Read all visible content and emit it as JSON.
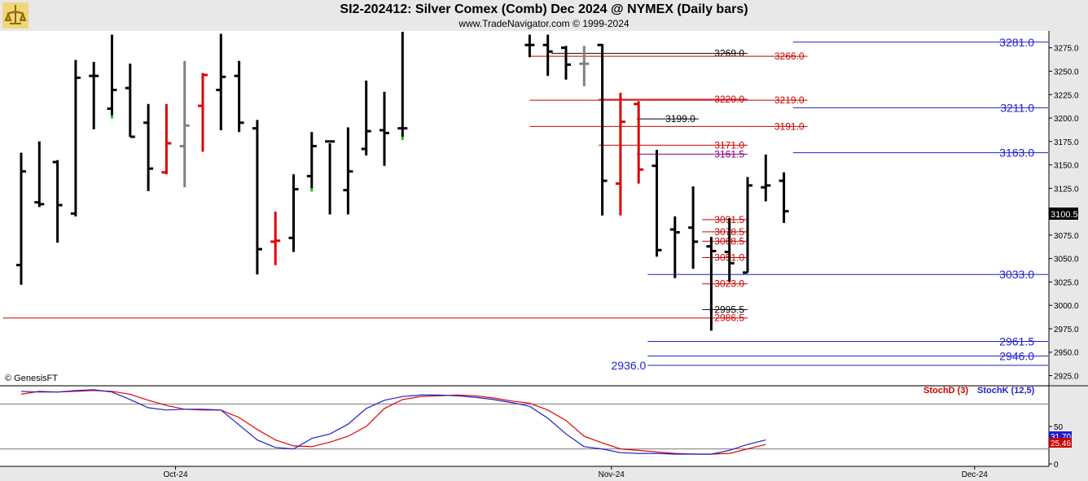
{
  "header": {
    "title": "SI2-202412:  Silver Comex (Comb) Dec 2024 @ NYMEX  (Daily bars)",
    "subtitle": "www.TradeNavigator.com © 1999-2024"
  },
  "watermark": "© GenesisFT",
  "colors": {
    "up_bar": "#000000",
    "down_bar": "#e00000",
    "neutral_bar": "#808080",
    "green_tick": "#00cc00",
    "blue_level": "#1f1fcc",
    "red_level": "#cc0000",
    "black_level": "#000000",
    "purple_level": "#800080"
  },
  "chart_data": [
    {
      "type": "ohlc",
      "title": "SI2-202412:  Silver Comex (Comb) Dec 2024 @ NYMEX  (Daily bars)",
      "ylim": [
        2915,
        3293
      ],
      "y_ticks": [
        "3275.0",
        "3250.0",
        "3225.0",
        "3200.0",
        "3175.0",
        "3150.0",
        "3125.0",
        "3100.0",
        "3075.0",
        "3050.0",
        "3025.0",
        "3000.0",
        "2975.0",
        "2950.0",
        "2925.0"
      ],
      "y_tick_values": [
        3275,
        3250,
        3225,
        3200,
        3175,
        3150,
        3125,
        3100,
        3075,
        3050,
        3025,
        3000,
        2975,
        2950,
        2925
      ],
      "x_labels": [
        {
          "label": "Oct-24",
          "index": 8.5
        },
        {
          "label": "Nov-24",
          "index": 32.5
        },
        {
          "label": "Dec-24",
          "index": 52.5
        }
      ],
      "last_price": "3100.5",
      "last_value": 3100.5,
      "bars": [
        {
          "o": 3043,
          "h": 3163,
          "l": 3022,
          "c": 3143,
          "color": "black"
        },
        {
          "o": 3110,
          "h": 3175,
          "l": 3105,
          "c": 3108,
          "color": "black"
        },
        {
          "o": 3153,
          "h": 3155,
          "l": 3067,
          "c": 3107,
          "color": "black"
        },
        {
          "o": 3098,
          "h": 3262,
          "l": 3095,
          "c": 3243,
          "color": "black"
        },
        {
          "o": 3245,
          "h": 3260,
          "l": 3188,
          "c": 3245,
          "color": "black"
        },
        {
          "o": 3210,
          "h": 3289,
          "l": 3203,
          "c": 3230,
          "color": "black",
          "tick": "green"
        },
        {
          "o": 3232,
          "h": 3258,
          "l": 3180,
          "c": 3180,
          "color": "black"
        },
        {
          "o": 3195,
          "h": 3215,
          "l": 3122,
          "c": 3146,
          "color": "black"
        },
        {
          "o": 3142,
          "h": 3215,
          "l": 3140,
          "c": 3173,
          "color": "red"
        },
        {
          "o": 3170,
          "h": 3261,
          "l": 3126,
          "c": 3192,
          "color": "gray"
        },
        {
          "o": 3213,
          "h": 3248,
          "l": 3164,
          "c": 3246,
          "color": "red"
        },
        {
          "o": 3230,
          "h": 3290,
          "l": 3187,
          "c": 3244,
          "color": "black"
        },
        {
          "o": 3245,
          "h": 3261,
          "l": 3185,
          "c": 3195,
          "color": "black"
        },
        {
          "o": 3189,
          "h": 3198,
          "l": 3033,
          "c": 3060,
          "color": "black"
        },
        {
          "o": 3068,
          "h": 3100,
          "l": 3043,
          "c": 3069,
          "color": "red"
        },
        {
          "o": 3072,
          "h": 3140,
          "l": 3057,
          "c": 3124,
          "color": "black"
        },
        {
          "o": 3138,
          "h": 3185,
          "l": 3125,
          "c": 3170,
          "color": "black",
          "tick": "green"
        },
        {
          "o": 3175,
          "h": 3173,
          "l": 3097,
          "c": 3175,
          "color": "black"
        },
        {
          "o": 3123,
          "h": 3190,
          "l": 3097,
          "c": 3143,
          "color": "black"
        },
        {
          "o": 3167,
          "h": 3240,
          "l": 3160,
          "c": 3186,
          "color": "black"
        },
        {
          "o": 3187,
          "h": 3228,
          "l": 3149,
          "c": 3184,
          "color": "black"
        },
        {
          "o": 3189,
          "h": 3292,
          "l": 3180,
          "c": 3189,
          "color": "black",
          "tick": "green"
        },
        null,
        null,
        null,
        null,
        null,
        null,
        {
          "o": 3278,
          "h": 3289,
          "l": 3265,
          "c": 3278,
          "color": "black"
        },
        {
          "o": 3278,
          "h": 3289,
          "l": 3245,
          "c": 3271,
          "color": "black"
        },
        {
          "o": 3275,
          "h": 3277,
          "l": 3241,
          "c": 3257,
          "color": "black"
        },
        {
          "o": 3258,
          "h": 3277,
          "l": 3234,
          "c": 3258,
          "color": "gray"
        },
        {
          "o": 3278,
          "h": 3279,
          "l": 3096,
          "c": 3133,
          "color": "black"
        },
        {
          "o": 3130,
          "h": 3227,
          "l": 3096,
          "c": 3196,
          "color": "red"
        },
        {
          "o": 3215,
          "h": 3218,
          "l": 3130,
          "c": 3145,
          "color": "red"
        },
        {
          "o": 3149,
          "h": 3166,
          "l": 3052,
          "c": 3059,
          "color": "black"
        },
        {
          "o": 3081,
          "h": 3095,
          "l": 3029,
          "c": 3078,
          "color": "black"
        },
        {
          "o": 3083,
          "h": 3127,
          "l": 3039,
          "c": 3068,
          "color": "black"
        },
        {
          "o": 3063,
          "h": 3073,
          "l": 2973,
          "c": 3058,
          "color": "black"
        },
        {
          "o": 3057,
          "h": 3093,
          "l": 3025,
          "c": 3045,
          "color": "black"
        },
        {
          "o": 3035,
          "h": 3137,
          "l": 3035,
          "c": 3128,
          "color": "black"
        },
        {
          "o": 3126,
          "h": 3161,
          "l": 3111,
          "c": 3128,
          "color": "black"
        },
        {
          "o": 3133,
          "h": 3142,
          "l": 3088,
          "c": 3100.5,
          "color": "black"
        }
      ],
      "levels": [
        {
          "value": 3281.0,
          "label": "3281.0",
          "color": "blue",
          "x1": 42.5,
          "x2": 57.5,
          "label_pos": "end",
          "size": "large"
        },
        {
          "value": 3269.0,
          "label": "3269.0",
          "color": "black",
          "x1": 29.2,
          "x2": 40.0,
          "label_pos": "end"
        },
        {
          "value": 3266.0,
          "label": "3266.0",
          "color": "red",
          "x1": 28.0,
          "x2": 43.3,
          "label_pos": "end"
        },
        {
          "value": 3220.0,
          "label": "3220.0",
          "color": "red",
          "x1": 31.8,
          "x2": 40.0,
          "label_pos": "end"
        },
        {
          "value": 3219.0,
          "label": "3219.0",
          "color": "red",
          "x1": 28.0,
          "x2": 43.3,
          "label_pos": "end"
        },
        {
          "value": 3211.0,
          "label": "3211.0",
          "color": "blue",
          "x1": 42.5,
          "x2": 57.5,
          "label_pos": "end",
          "size": "large"
        },
        {
          "value": 3199.0,
          "label": "3199.0",
          "color": "black",
          "x1": 33.9,
          "x2": 37.3,
          "label_pos": "end"
        },
        {
          "value": 3191.0,
          "label": "3191.0",
          "color": "red",
          "x1": 28.0,
          "x2": 43.3,
          "label_pos": "end"
        },
        {
          "value": 3171.0,
          "label": "3171.0",
          "color": "red",
          "x1": 31.8,
          "x2": 40.0,
          "label_pos": "end"
        },
        {
          "value": 3163.0,
          "label": "3163.0",
          "color": "blue",
          "x1": 42.5,
          "x2": 57.5,
          "label_pos": "end",
          "size": "large"
        },
        {
          "value": 3161.5,
          "label": "3161.5",
          "color": "purple",
          "x1": 33.9,
          "x2": 40.0,
          "label_pos": "end"
        },
        {
          "value": 3091.5,
          "label": "3091.5",
          "color": "red",
          "x1": 37.5,
          "x2": 40.0,
          "label_pos": "end"
        },
        {
          "value": 3078.5,
          "label": "3078.5",
          "color": "red",
          "x1": 37.5,
          "x2": 40.0,
          "label_pos": "end"
        },
        {
          "value": 3068.5,
          "label": "3068.5",
          "color": "red",
          "x1": 37.5,
          "x2": 40.0,
          "label_pos": "end"
        },
        {
          "value": 3051.0,
          "label": "3051.0",
          "color": "red",
          "x1": 37.5,
          "x2": 40.0,
          "label_pos": "end"
        },
        {
          "value": 3033.0,
          "label": "3033.0",
          "color": "blue",
          "x1": 34.5,
          "x2": 57.5,
          "label_pos": "end",
          "size": "large"
        },
        {
          "value": 3023.0,
          "label": "3023.0",
          "color": "red",
          "x1": 37.5,
          "x2": 40.0,
          "label_pos": "end"
        },
        {
          "value": 2995.5,
          "label": "2995.5",
          "color": "black",
          "x1": 37.5,
          "x2": 40.0,
          "label_pos": "end"
        },
        {
          "value": 2986.5,
          "label": "2986.5",
          "color": "red",
          "x1": -1.0,
          "x2": 40.0,
          "label_pos": "end"
        },
        {
          "value": 2961.5,
          "label": "2961.5",
          "color": "blue",
          "x1": 34.5,
          "x2": 57.5,
          "label_pos": "end",
          "size": "large"
        },
        {
          "value": 2946.0,
          "label": "2946.0",
          "color": "blue",
          "x1": 34.5,
          "x2": 57.5,
          "label_pos": "end",
          "size": "large"
        },
        {
          "value": 2936.0,
          "label": "2936.0",
          "color": "blue",
          "x1": 34.5,
          "x2": 57.5,
          "label_pos": "start",
          "size": "large"
        }
      ]
    },
    {
      "type": "line",
      "ylim": [
        0,
        100
      ],
      "y_ticks": [
        "50",
        "0"
      ],
      "y_tick_values": [
        50,
        0
      ],
      "ref_lines": [
        80,
        20
      ],
      "legend_placement": "top-right",
      "series": [
        {
          "name": "StochD (3)",
          "color": "red",
          "values": [
            93,
            97,
            96,
            97,
            98,
            97,
            93,
            85,
            78,
            73,
            72,
            72,
            62,
            46,
            32,
            24,
            23,
            29,
            37,
            50,
            74,
            86,
            90,
            91,
            92,
            91,
            88,
            84,
            81,
            72,
            58,
            37,
            28,
            20,
            18,
            16,
            14,
            13,
            13,
            14,
            20,
            26
          ]
        },
        {
          "name": "StochK (12,5)",
          "color": "blue",
          "values": [
            97,
            96,
            96,
            98,
            99,
            96,
            86,
            75,
            72,
            73,
            73,
            72,
            52,
            32,
            22,
            20,
            34,
            40,
            53,
            74,
            85,
            90,
            92,
            92,
            91,
            89,
            86,
            82,
            77,
            61,
            40,
            23,
            20,
            15,
            14,
            14,
            13,
            13,
            13,
            18,
            26,
            32
          ]
        }
      ],
      "stochD_value": "25.46",
      "stochK_value": "31.70",
      "stochD_last": 25.46,
      "stochK_last": 31.7
    }
  ]
}
